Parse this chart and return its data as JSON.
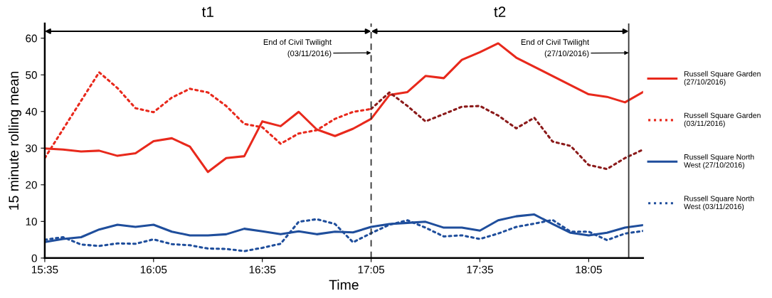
{
  "chart_data": {
    "type": "line",
    "xlabel": "Time",
    "ylabel": "15 minute rolling mean",
    "x": [
      15.583,
      15.667,
      15.75,
      15.833,
      15.917,
      16.0,
      16.083,
      16.167,
      16.25,
      16.333,
      16.417,
      16.5,
      16.583,
      16.667,
      16.75,
      16.833,
      16.917,
      17.0,
      17.083,
      17.167,
      17.25,
      17.333,
      17.417,
      17.5,
      17.583,
      17.667,
      17.75,
      17.833,
      17.917,
      18.0,
      18.083,
      18.167,
      18.25,
      18.333
    ],
    "series": [
      {
        "name": "Russell Square Garden\n(27/10/2016)",
        "color": "#e8291c",
        "line_style": "solid",
        "x": [
          15.583,
          15.667,
          15.75,
          15.833,
          15.917,
          16.0,
          16.083,
          16.167,
          16.25,
          16.333,
          16.417,
          16.5,
          16.583,
          16.667,
          16.75,
          16.833,
          16.917,
          17.0,
          17.083,
          17.167,
          17.25,
          17.333,
          17.417,
          17.5,
          17.583,
          17.667,
          17.75,
          18.083,
          18.167,
          18.25,
          18.333
        ],
        "values": [
          29.9,
          29.6,
          29.1,
          29.3,
          27.9,
          28.6,
          31.9,
          32.7,
          30.4,
          23.5,
          27.3,
          27.8,
          37.3,
          36.0,
          39.9,
          35.1,
          33.3,
          35.3,
          38.0,
          44.5,
          45.3,
          49.7,
          49.1,
          54.1,
          56.2,
          58.6,
          54.7,
          44.7,
          44.0,
          42.5,
          45.3
        ]
      },
      {
        "name": "Russell Square Garden\n(03/11/2016)",
        "color": "#e8291c",
        "line_style": "dotted",
        "x": [
          15.583,
          15.833,
          15.917,
          16.0,
          16.083,
          16.167,
          16.25,
          16.333,
          16.417,
          16.5,
          16.583,
          16.667,
          16.75,
          16.833,
          16.917,
          17.0,
          17.083
        ],
        "values": [
          27.3,
          50.7,
          46.4,
          40.9,
          39.8,
          43.8,
          46.2,
          45.2,
          41.5,
          36.6,
          35.7,
          31.2,
          34.0,
          34.9,
          38.0,
          39.9,
          40.7
        ]
      },
      {
        "color": "#8b1a1a",
        "line_style": "dotted",
        "x": [
          17.083,
          17.167,
          17.25,
          17.333,
          17.417,
          17.5,
          17.583,
          17.667,
          17.75,
          17.833,
          17.917,
          18.0,
          18.083,
          18.167,
          18.25,
          18.333
        ],
        "values": [
          40.7,
          45.2,
          41.5,
          37.3,
          39.3,
          41.3,
          41.5,
          38.9,
          35.4,
          38.3,
          31.8,
          30.6,
          25.4,
          24.3,
          27.3,
          29.6
        ]
      },
      {
        "name": "Russell Square North\nWest (27/10/2016)",
        "color": "#1f4e9c",
        "line_style": "solid",
        "values": [
          4.4,
          5.2,
          5.7,
          7.8,
          9.1,
          8.5,
          9.1,
          7.2,
          6.2,
          6.2,
          6.5,
          8.0,
          7.3,
          6.5,
          7.3,
          6.5,
          7.2,
          7.0,
          8.5,
          9.3,
          9.6,
          9.9,
          8.3,
          8.3,
          7.5,
          10.3,
          11.4,
          11.9,
          9.3,
          6.9,
          6.2,
          6.9,
          8.3,
          9.0
        ]
      },
      {
        "name": "Russell Square North\nWest (03/11/2016)",
        "color": "#1f4e9c",
        "line_style": "dotted",
        "values": [
          5.0,
          5.7,
          3.7,
          3.3,
          4.0,
          3.9,
          5.1,
          3.8,
          3.5,
          2.6,
          2.5,
          1.9,
          2.8,
          3.9,
          9.9,
          10.6,
          9.3,
          4.3,
          6.8,
          9.1,
          10.3,
          8.3,
          5.9,
          6.2,
          5.2,
          6.7,
          8.5,
          9.4,
          10.4,
          7.2,
          7.2,
          4.9,
          6.7,
          7.4
        ]
      }
    ],
    "xlim": [
      15.583,
      18.333
    ],
    "ylim": [
      0,
      64
    ],
    "xticks": [
      {
        "value": 15.583,
        "label": "15:35"
      },
      {
        "value": 16.083,
        "label": "16:05"
      },
      {
        "value": 16.583,
        "label": "16:35"
      },
      {
        "value": 17.083,
        "label": "17:05"
      },
      {
        "value": 17.583,
        "label": "17:35"
      },
      {
        "value": 18.083,
        "label": "18:05"
      }
    ],
    "yticks": [
      0,
      10,
      20,
      30,
      40,
      50,
      60
    ],
    "ref_lines": [
      {
        "axis": "x",
        "value": 17.083,
        "line_style": "dashed",
        "color": "#333333"
      },
      {
        "axis": "x",
        "value": 18.267,
        "line_style": "solid",
        "color": "#333333"
      }
    ],
    "annotations": [
      "t1",
      "t2",
      {
        "text": "End of Civil Twilight\n(03/11/2016)",
        "x": 17.083,
        "y": 56
      },
      {
        "text": "End of Civil Twilight\n(27/10/2016)",
        "x": 18.267,
        "y": 56
      }
    ],
    "grid": false,
    "legend": "right",
    "marker": "none"
  }
}
